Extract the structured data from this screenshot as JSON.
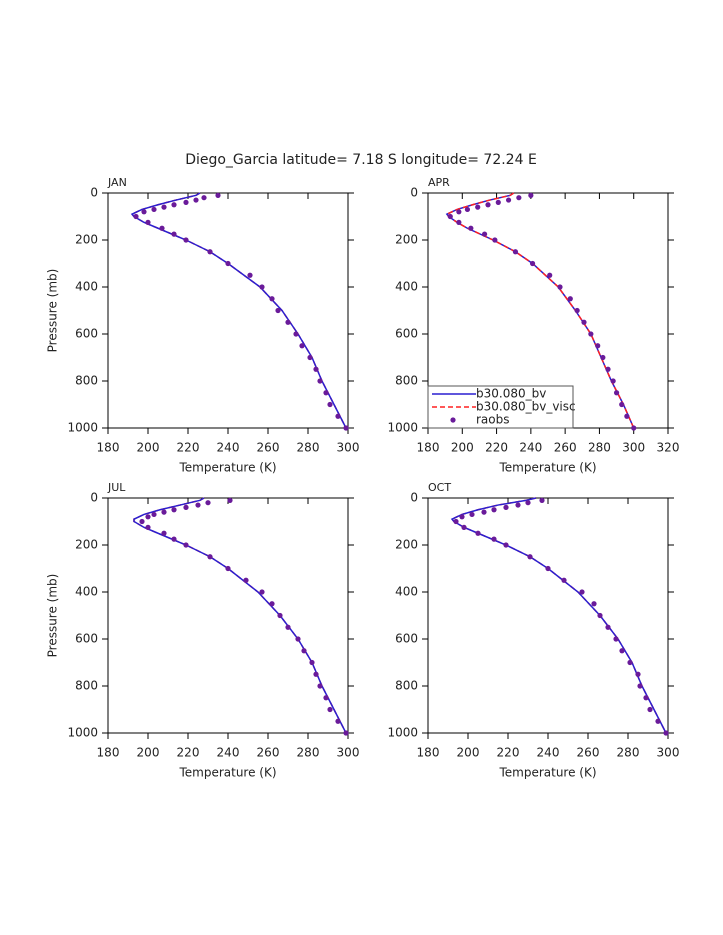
{
  "title": "Diego_Garcia  latitude= 7.18 S longitude= 72.24 E",
  "chart_data": [
    {
      "type": "line",
      "title": "JAN",
      "xlabel": "Temperature (K)",
      "ylabel": "Pressure (mb)",
      "xlim": [
        180,
        300
      ],
      "xticks": [
        180,
        200,
        220,
        240,
        260,
        280,
        300
      ],
      "ylim": [
        0,
        1000
      ],
      "yticks": [
        0,
        200,
        400,
        600,
        800,
        1000
      ],
      "y_inverted": true,
      "series": [
        {
          "color": "#ff2020",
          "dash": true,
          "x": [
            226,
            224,
            214,
            205,
            197,
            192,
            193,
            198,
            205,
            219,
            231,
            240,
            256,
            267,
            275,
            282,
            287,
            293,
            299
          ],
          "y": [
            0,
            10,
            30,
            50,
            70,
            90,
            100,
            125,
            150,
            200,
            250,
            300,
            400,
            500,
            600,
            700,
            800,
            900,
            1000
          ]
        },
        {
          "color": "#2a1fd0",
          "x": [
            226,
            224,
            214,
            205,
            197,
            192,
            193,
            198,
            205,
            219,
            231,
            240,
            256,
            267,
            275,
            282,
            287,
            293,
            299
          ],
          "y": [
            0,
            10,
            30,
            50,
            70,
            90,
            100,
            125,
            150,
            200,
            250,
            300,
            400,
            500,
            600,
            700,
            800,
            900,
            1000
          ]
        },
        {
          "color": "#6a1b9a",
          "marker": "dot",
          "x": [
            235,
            228,
            224,
            219,
            213,
            208,
            203,
            198,
            194,
            200,
            207,
            213,
            219,
            231,
            240,
            251,
            257,
            262,
            265,
            270,
            274,
            277,
            281,
            284,
            286,
            289,
            291,
            295,
            299
          ],
          "y": [
            10,
            20,
            30,
            40,
            50,
            60,
            70,
            80,
            100,
            125,
            150,
            175,
            200,
            250,
            300,
            350,
            400,
            450,
            500,
            550,
            600,
            650,
            700,
            750,
            800,
            850,
            900,
            950,
            1000
          ]
        }
      ]
    },
    {
      "type": "line",
      "title": "APR",
      "xlabel": "Temperature (K)",
      "xlim": [
        180,
        320
      ],
      "xticks": [
        180,
        200,
        220,
        240,
        260,
        280,
        300,
        320
      ],
      "ylim": [
        0,
        1000
      ],
      "yticks": [
        0,
        200,
        400,
        600,
        800,
        1000
      ],
      "y_inverted": true,
      "legend": "lower left",
      "series": [
        {
          "name": "b30.080_bv",
          "color": "#2a1fd0",
          "x": [
            230,
            228,
            216,
            206,
            197,
            191,
            192,
            197,
            203,
            218,
            231,
            241,
            256,
            266,
            275,
            281,
            287,
            294,
            300
          ],
          "y": [
            0,
            10,
            30,
            50,
            70,
            90,
            100,
            125,
            150,
            200,
            250,
            300,
            400,
            500,
            600,
            700,
            800,
            900,
            1000
          ]
        },
        {
          "name": "b30.080_bv_visc",
          "color": "#ff2020",
          "dash": true,
          "x": [
            230,
            228,
            216,
            206,
            197,
            191,
            192,
            197,
            203,
            218,
            231,
            241,
            256,
            266,
            275,
            281,
            287,
            294,
            300
          ],
          "y": [
            0,
            10,
            30,
            50,
            70,
            90,
            100,
            125,
            150,
            200,
            250,
            300,
            400,
            500,
            600,
            700,
            800,
            900,
            1000
          ]
        },
        {
          "name": "raobs",
          "color": "#6a1b9a",
          "marker": "dot",
          "x": [
            240,
            233,
            227,
            221,
            215,
            209,
            203,
            198,
            193,
            198,
            205,
            213,
            219,
            231,
            241,
            251,
            257,
            263,
            267,
            271,
            275,
            279,
            282,
            285,
            288,
            290,
            293,
            296,
            300
          ],
          "y": [
            10,
            20,
            30,
            40,
            50,
            60,
            70,
            80,
            100,
            125,
            150,
            175,
            200,
            250,
            300,
            350,
            400,
            450,
            500,
            550,
            600,
            650,
            700,
            750,
            800,
            850,
            900,
            950,
            1000
          ]
        }
      ]
    },
    {
      "type": "line",
      "title": "JUL",
      "xlabel": "Temperature (K)",
      "ylabel": "Pressure (mb)",
      "xlim": [
        180,
        300
      ],
      "xticks": [
        180,
        200,
        220,
        240,
        260,
        280,
        300
      ],
      "ylim": [
        0,
        1000
      ],
      "yticks": [
        0,
        200,
        400,
        600,
        800,
        1000
      ],
      "y_inverted": true,
      "series": [
        {
          "color": "#ff2020",
          "dash": true,
          "x": [
            228,
            226,
            216,
            206,
            198,
            193,
            193,
            198,
            205,
            219,
            231,
            240,
            255,
            266,
            275,
            282,
            287,
            293,
            299
          ],
          "y": [
            0,
            10,
            30,
            50,
            70,
            90,
            100,
            125,
            150,
            200,
            250,
            300,
            400,
            500,
            600,
            700,
            800,
            900,
            1000
          ]
        },
        {
          "color": "#2a1fd0",
          "x": [
            228,
            226,
            216,
            206,
            198,
            193,
            193,
            198,
            205,
            219,
            231,
            240,
            255,
            266,
            275,
            282,
            287,
            293,
            299
          ],
          "y": [
            0,
            10,
            30,
            50,
            70,
            90,
            100,
            125,
            150,
            200,
            250,
            300,
            400,
            500,
            600,
            700,
            800,
            900,
            1000
          ]
        },
        {
          "color": "#6a1b9a",
          "marker": "dot",
          "x": [
            241,
            230,
            225,
            219,
            213,
            208,
            203,
            200,
            197,
            200,
            208,
            213,
            219,
            231,
            240,
            249,
            257,
            262,
            266,
            270,
            275,
            278,
            282,
            284,
            286,
            289,
            291,
            295,
            299
          ],
          "y": [
            10,
            20,
            30,
            40,
            50,
            60,
            70,
            80,
            100,
            125,
            150,
            175,
            200,
            250,
            300,
            350,
            400,
            450,
            500,
            550,
            600,
            650,
            700,
            750,
            800,
            850,
            900,
            950,
            1000
          ]
        }
      ]
    },
    {
      "type": "line",
      "title": "OCT",
      "xlabel": "Temperature (K)",
      "xlim": [
        180,
        300
      ],
      "xticks": [
        180,
        200,
        220,
        240,
        260,
        280,
        300
      ],
      "ylim": [
        0,
        1000
      ],
      "yticks": [
        0,
        200,
        400,
        600,
        800,
        1000
      ],
      "y_inverted": true,
      "series": [
        {
          "color": "#ff2020",
          "dash": true,
          "x": [
            234,
            229,
            215,
            205,
            197,
            192,
            193,
            198,
            205,
            219,
            231,
            240,
            255,
            266,
            275,
            282,
            287,
            293,
            299
          ],
          "y": [
            0,
            10,
            30,
            50,
            70,
            90,
            100,
            125,
            150,
            200,
            250,
            300,
            400,
            500,
            600,
            700,
            800,
            900,
            1000
          ]
        },
        {
          "color": "#2a1fd0",
          "x": [
            234,
            229,
            215,
            205,
            197,
            192,
            193,
            198,
            205,
            219,
            231,
            240,
            255,
            266,
            275,
            282,
            287,
            293,
            299
          ],
          "y": [
            0,
            10,
            30,
            50,
            70,
            90,
            100,
            125,
            150,
            200,
            250,
            300,
            400,
            500,
            600,
            700,
            800,
            900,
            1000
          ]
        },
        {
          "color": "#6a1b9a",
          "marker": "dot",
          "x": [
            237,
            230,
            225,
            219,
            213,
            208,
            202,
            197,
            194,
            198,
            205,
            213,
            219,
            231,
            240,
            248,
            257,
            263,
            266,
            270,
            274,
            277,
            281,
            285,
            286,
            289,
            291,
            295,
            299
          ],
          "y": [
            10,
            20,
            30,
            40,
            50,
            60,
            70,
            80,
            100,
            125,
            150,
            175,
            200,
            250,
            300,
            350,
            400,
            450,
            500,
            550,
            600,
            650,
            700,
            750,
            800,
            850,
            900,
            950,
            1000
          ]
        }
      ]
    }
  ]
}
